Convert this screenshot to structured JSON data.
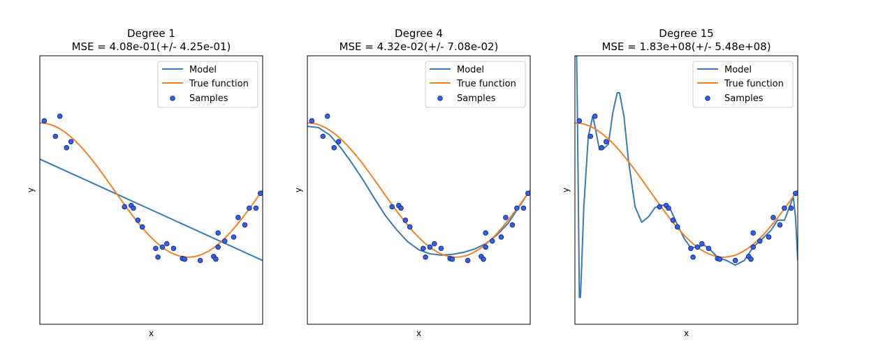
{
  "chart_data": [
    {
      "type": "scatter",
      "title_line1": "Degree 1",
      "title_line2": "MSE = 4.08e-01(+/- 4.25e-01)",
      "xlabel": "x",
      "ylabel": "y",
      "xlim": [
        0,
        1
      ],
      "ylim": [
        -2,
        2
      ],
      "legend_placement": "top-right",
      "degree": 1
    },
    {
      "type": "scatter",
      "title_line1": "Degree 4",
      "title_line2": "MSE = 4.32e-02(+/- 7.08e-02)",
      "xlabel": "x",
      "ylabel": "y",
      "xlim": [
        0,
        1
      ],
      "ylim": [
        -2,
        2
      ],
      "legend_placement": "top-right",
      "degree": 4
    },
    {
      "type": "scatter",
      "title_line1": "Degree 15",
      "title_line2": "MSE = 1.83e+08(+/- 5.48e+08)",
      "xlabel": "x",
      "ylabel": "y",
      "xlim": [
        0,
        1
      ],
      "ylim": [
        -2,
        2
      ],
      "legend_placement": "top-right",
      "degree": 15
    }
  ],
  "legend": {
    "model": "Model",
    "true_function": "True function",
    "samples": "Samples"
  },
  "colors": {
    "model": "#3a78b5",
    "true_function": "#f08226",
    "samples_fill": "#3462e0",
    "samples_edge": "#1b2b8a"
  },
  "samples": [
    [
      0.02,
      1.03
    ],
    [
      0.07,
      0.8
    ],
    [
      0.09,
      1.1
    ],
    [
      0.12,
      0.63
    ],
    [
      0.14,
      0.72
    ],
    [
      0.38,
      -0.25
    ],
    [
      0.41,
      -0.23
    ],
    [
      0.42,
      -0.27
    ],
    [
      0.44,
      -0.45
    ],
    [
      0.46,
      -0.55
    ],
    [
      0.52,
      -0.87
    ],
    [
      0.53,
      -1.0
    ],
    [
      0.55,
      -0.85
    ],
    [
      0.57,
      -0.8
    ],
    [
      0.6,
      -0.87
    ],
    [
      0.64,
      -1.02
    ],
    [
      0.65,
      -1.03
    ],
    [
      0.72,
      -1.05
    ],
    [
      0.78,
      -0.99
    ],
    [
      0.79,
      -1.03
    ],
    [
      0.8,
      -0.64
    ],
    [
      0.8,
      -0.85
    ],
    [
      0.83,
      -0.76
    ],
    [
      0.87,
      -0.7
    ],
    [
      0.89,
      -0.41
    ],
    [
      0.92,
      -0.52
    ],
    [
      0.94,
      -0.27
    ],
    [
      0.97,
      -0.27
    ],
    [
      0.99,
      -0.05
    ]
  ],
  "model_curves": {
    "1": [
      [
        0.0,
        0.46
      ],
      [
        1.0,
        -1.05
      ]
    ],
    "4": [
      [
        0.0,
        0.95
      ],
      [
        0.05,
        0.93
      ],
      [
        0.1,
        0.82
      ],
      [
        0.15,
        0.63
      ],
      [
        0.2,
        0.4
      ],
      [
        0.25,
        0.15
      ],
      [
        0.3,
        -0.12
      ],
      [
        0.35,
        -0.38
      ],
      [
        0.4,
        -0.59
      ],
      [
        0.45,
        -0.77
      ],
      [
        0.5,
        -0.89
      ],
      [
        0.55,
        -0.95
      ],
      [
        0.6,
        -0.97
      ],
      [
        0.65,
        -0.96
      ],
      [
        0.7,
        -0.93
      ],
      [
        0.75,
        -0.88
      ],
      [
        0.8,
        -0.8
      ],
      [
        0.85,
        -0.67
      ],
      [
        0.9,
        -0.5
      ],
      [
        0.95,
        -0.25
      ],
      [
        1.0,
        0.0
      ]
    ],
    "15": [
      [
        0.0,
        3.5
      ],
      [
        0.01,
        1.5
      ],
      [
        0.02,
        -1.6
      ],
      [
        0.025,
        -1.6
      ],
      [
        0.04,
        -0.25
      ],
      [
        0.06,
        0.8
      ],
      [
        0.08,
        1.1
      ],
      [
        0.09,
        0.95
      ],
      [
        0.11,
        0.6
      ],
      [
        0.13,
        0.62
      ],
      [
        0.15,
        0.68
      ],
      [
        0.17,
        1.15
      ],
      [
        0.19,
        1.45
      ],
      [
        0.2,
        1.45
      ],
      [
        0.22,
        1.1
      ],
      [
        0.24,
        0.45
      ],
      [
        0.27,
        -0.25
      ],
      [
        0.3,
        -0.48
      ],
      [
        0.33,
        -0.4
      ],
      [
        0.36,
        -0.26
      ],
      [
        0.4,
        -0.22
      ],
      [
        0.43,
        -0.3
      ],
      [
        0.46,
        -0.52
      ],
      [
        0.49,
        -0.72
      ],
      [
        0.52,
        -0.86
      ],
      [
        0.55,
        -0.85
      ],
      [
        0.58,
        -0.82
      ],
      [
        0.61,
        -0.9
      ],
      [
        0.64,
        -1.0
      ],
      [
        0.68,
        -1.05
      ],
      [
        0.72,
        -1.12
      ],
      [
        0.76,
        -1.05
      ],
      [
        0.8,
        -0.85
      ],
      [
        0.84,
        -0.73
      ],
      [
        0.88,
        -0.6
      ],
      [
        0.91,
        -0.45
      ],
      [
        0.94,
        -0.45
      ],
      [
        0.96,
        -0.28
      ],
      [
        0.98,
        -0.1
      ],
      [
        0.99,
        -0.4
      ],
      [
        1.0,
        -1.05
      ]
    ]
  }
}
